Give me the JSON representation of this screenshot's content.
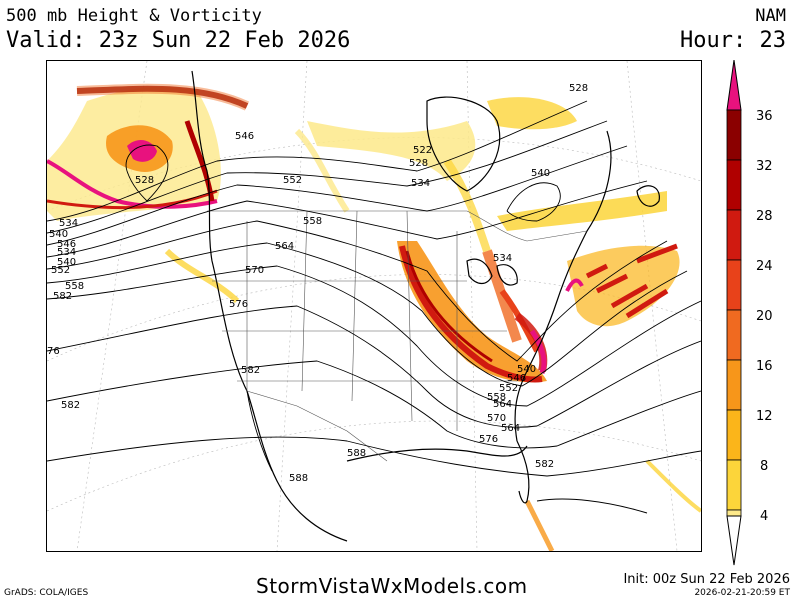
{
  "header": {
    "title": "500 mb Height & Vorticity",
    "valid": "Valid: 23z Sun 22 Feb 2026",
    "model": "NAM",
    "hour": "Hour: 23"
  },
  "colorbar": {
    "labels": [
      "36",
      "32",
      "28",
      "24",
      "20",
      "16",
      "12",
      "8",
      "4"
    ],
    "colors": [
      "#e8127e",
      "#8b0000",
      "#b00000",
      "#d01a10",
      "#e8421a",
      "#f06a20",
      "#f7961a",
      "#fbb51a",
      "#fcd53a",
      "#fde98a",
      "#fff5c0"
    ]
  },
  "contour_labels": [
    "534",
    "546",
    "552",
    "558",
    "564",
    "570",
    "576",
    "582",
    "588",
    "528",
    "540",
    "522",
    "528",
    "534",
    "540",
    "534",
    "540",
    "546",
    "552",
    "558",
    "564",
    "570",
    "576",
    "582",
    "76",
    "582",
    "582",
    "528",
    "534",
    "540",
    "546",
    "552",
    "558",
    "564",
    "588"
  ],
  "footer": {
    "grads": "GrADS: COLA/IGES",
    "site": "StormVistaWxModels.com",
    "init": "Init: 00z Sun 22 Feb 2026",
    "stamp": "2026-02-21-20:59 ET"
  }
}
